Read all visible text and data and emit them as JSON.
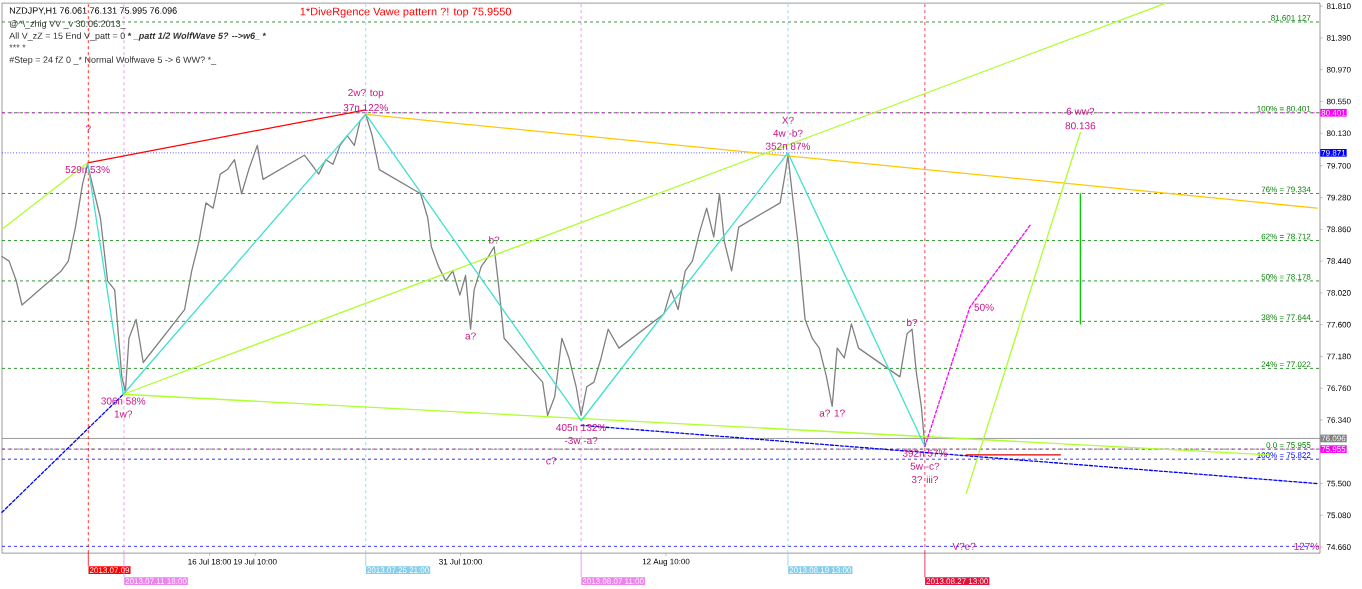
{
  "chart_data": {
    "type": "line",
    "title": "NZDJPY,H1  76.061 76.131 75.995 76.096",
    "subtitle": "1*DiveRgence  Vawe pattern ?! top  75.9550",
    "xlim": [
      "2013-07-04T15:00",
      "2013-09-19T15:00"
    ],
    "ylim": [
      74.58,
      81.85
    ],
    "xticks": [
      {
        "value": "2013-07-16T18:00",
        "label": "16 Jul 18:00"
      },
      {
        "value": "2013-07-19T10:00",
        "label": "19 Jul 10:00"
      },
      {
        "value": "2013-07-31T10:00",
        "label": "31 Jul 10:00"
      },
      {
        "value": "2013-08-12T10:00",
        "label": "12 Aug 10:00"
      }
    ],
    "yticks": [
      {
        "value": 74.66,
        "label": "74.660"
      },
      {
        "value": 75.08,
        "label": "75.080"
      },
      {
        "value": 75.5,
        "label": "75.500"
      },
      {
        "value": 76.34,
        "label": "76.340"
      },
      {
        "value": 76.76,
        "label": "76.760"
      },
      {
        "value": 77.18,
        "label": "77.180"
      },
      {
        "value": 77.6,
        "label": "77.600"
      },
      {
        "value": 78.02,
        "label": "78.020"
      },
      {
        "value": 78.44,
        "label": "78.440"
      },
      {
        "value": 78.86,
        "label": "78.860"
      },
      {
        "value": 79.28,
        "label": "79.280"
      },
      {
        "value": 79.7,
        "label": "79.700"
      },
      {
        "value": 80.13,
        "label": "80.130"
      },
      {
        "value": 80.55,
        "label": "80.550"
      },
      {
        "value": 80.97,
        "label": "80.970"
      },
      {
        "value": 81.39,
        "label": "81.390"
      },
      {
        "value": 81.81,
        "label": "81.810"
      }
    ],
    "series": [
      {
        "color": "#808080",
        "x": [
          "2013-07-04T15:00",
          "2013-07-05T01:00",
          "2013-07-05T11:00",
          "2013-07-05T19:00",
          "2013-07-08T02:00",
          "2013-07-08T12:00",
          "2013-07-08T22:00",
          "2013-07-09T08:00",
          "2013-07-09T15:00",
          "2013-07-09T23:00",
          "2013-07-10T09:00",
          "2013-07-10T19:00",
          "2013-07-11T05:00",
          "2013-07-11T15:00",
          "2013-07-11T20:00",
          "2013-07-12T01:00",
          "2013-07-12T11:00",
          "2013-07-12T21:00",
          "2013-07-15T07:00",
          "2013-07-15T17:00",
          "2013-07-16T03:00",
          "2013-07-16T13:00",
          "2013-07-16T23:00",
          "2013-07-17T09:00",
          "2013-07-17T19:00",
          "2013-07-18T05:00",
          "2013-07-18T15:00",
          "2013-07-19T01:00",
          "2013-07-19T13:00",
          "2013-07-19T21:00",
          "2013-07-22T07:00",
          "2013-07-22T17:00",
          "2013-07-23T03:00",
          "2013-07-23T13:00",
          "2013-07-23T23:00",
          "2013-07-24T09:00",
          "2013-07-24T19:00",
          "2013-07-25T05:00",
          "2013-07-25T13:00",
          "2013-07-25T21:00",
          "2013-07-26T06:00",
          "2013-07-26T16:00",
          "2013-07-29T02:00",
          "2013-07-29T12:00",
          "2013-07-29T17:00",
          "2013-07-30T03:00",
          "2013-07-30T13:00",
          "2013-07-30T23:00",
          "2013-07-31T09:00",
          "2013-07-31T17:00",
          "2013-08-01T00:00",
          "2013-08-01T05:00",
          "2013-08-01T15:00",
          "2013-08-02T01:00",
          "2013-08-02T09:00",
          "2013-08-02T16:00",
          "2013-08-02T23:00",
          "2013-08-05T05:00",
          "2013-08-05T12:00",
          "2013-08-05T22:00",
          "2013-08-06T08:00",
          "2013-08-06T18:00",
          "2013-08-07T04:00",
          "2013-08-07T11:00",
          "2013-08-07T19:00",
          "2013-08-08T05:00",
          "2013-08-08T15:00",
          "2013-08-09T01:00",
          "2013-08-09T16:00",
          "2013-08-12T07:00",
          "2013-08-12T17:00",
          "2013-08-13T03:00",
          "2013-08-13T13:00",
          "2013-08-13T23:00",
          "2013-08-14T09:00",
          "2013-08-14T19:00",
          "2013-08-15T05:00",
          "2013-08-15T13:00",
          "2013-08-15T20:00",
          "2013-08-16T06:00",
          "2013-08-16T16:00",
          "2013-08-19T02:00",
          "2013-08-19T09:00",
          "2013-08-19T13:00",
          "2013-08-19T19:00",
          "2013-08-20T03:00",
          "2013-08-20T13:00",
          "2013-08-20T23:00",
          "2013-08-21T09:00",
          "2013-08-21T19:00",
          "2013-08-22T03:00",
          "2013-08-22T10:00",
          "2013-08-22T20:00",
          "2013-08-23T06:00",
          "2013-08-23T16:00",
          "2013-08-26T02:00",
          "2013-08-26T12:00",
          "2013-08-26T19:00",
          "2013-08-27T01:00",
          "2013-08-27T08:00",
          "2013-08-27T13:00"
        ],
        "values": [
          78.5,
          78.44,
          78.18,
          77.86,
          78.31,
          78.44,
          78.89,
          79.46,
          79.72,
          79.4,
          79.01,
          78.18,
          78.06,
          76.91,
          76.71,
          77.42,
          77.67,
          77.1,
          77.8,
          78.31,
          78.69,
          79.21,
          79.14,
          79.59,
          79.65,
          79.78,
          79.33,
          79.65,
          79.97,
          79.52,
          79.84,
          79.72,
          79.59,
          79.78,
          79.72,
          79.97,
          80.1,
          79.97,
          80.29,
          80.38,
          80.1,
          79.65,
          79.33,
          79.01,
          78.63,
          78.37,
          78.18,
          78.31,
          77.99,
          78.25,
          77.54,
          78.06,
          78.37,
          78.5,
          78.63,
          78.06,
          77.42,
          76.84,
          76.4,
          76.65,
          77.42,
          77.16,
          76.78,
          76.4,
          76.78,
          76.84,
          77.16,
          77.54,
          77.29,
          77.74,
          78.06,
          77.8,
          78.31,
          78.44,
          78.82,
          79.14,
          78.76,
          79.33,
          78.69,
          78.31,
          78.89,
          79.21,
          79.59,
          79.84,
          79.33,
          78.69,
          77.67,
          77.42,
          77.29,
          76.91,
          76.52,
          77.29,
          77.16,
          77.61,
          77.29,
          76.91,
          77.48,
          77.54,
          76.97,
          76.52,
          75.99
        ]
      },
      {
        "color": "#ff0000",
        "x": [
          "2013-07-09T15:00",
          "2013-07-25T21:00"
        ],
        "values": [
          79.74,
          80.44
        ]
      },
      {
        "color": "#ffc800",
        "x": [
          "2013-07-25T21:00",
          "2013-09-19T11:00"
        ],
        "values": [
          80.38,
          79.14
        ]
      },
      {
        "color": "#adff2f",
        "x": [
          "2013-07-11T17:00",
          "2013-09-10T15:00"
        ],
        "values": [
          76.68,
          81.85
        ]
      },
      {
        "color": "#adff2f",
        "x": [
          "2013-07-11T17:00",
          "2013-09-16T17:00"
        ],
        "values": [
          76.68,
          75.88
        ]
      },
      {
        "color": "#adff2f",
        "x": [
          "2013-07-04T15:00",
          "2013-07-09T15:00"
        ],
        "values": [
          78.86,
          79.74
        ]
      },
      {
        "color": "#adff2f",
        "x": [
          "2013-08-29T23:00",
          "2013-09-05T15:00"
        ],
        "values": [
          75.37,
          80.14
        ]
      },
      {
        "color": "#00cc00",
        "x": [
          "2013-09-05T15:00",
          "2013-09-05T15:00"
        ],
        "values": [
          79.33,
          77.61
        ]
      },
      {
        "color": "#40e0d0",
        "x": [
          "2013-07-09T15:00",
          "2013-07-11T17:00",
          "2013-07-25T21:00",
          "2013-08-07T11:00",
          "2013-08-19T13:00",
          "2013-08-27T13:00"
        ],
        "values": [
          79.74,
          76.68,
          80.38,
          76.33,
          79.87,
          75.99
        ]
      },
      {
        "color": "#ff00ff",
        "line_style": "dashed",
        "x": [
          "2013-08-27T13:00",
          "2013-08-30T04:00",
          "2013-09-02T17:00"
        ],
        "values": [
          75.99,
          77.83,
          78.92
        ]
      },
      {
        "color": "#e00000",
        "x": [
          "2013-08-29T23:00",
          "2013-09-04T11:00"
        ],
        "values": [
          75.88,
          75.88
        ]
      },
      {
        "color": "#0000ff",
        "line_style": "dashed",
        "x": [
          "2013-07-04T15:00",
          "2013-07-11T17:00"
        ],
        "values": [
          75.12,
          76.68
        ]
      },
      {
        "color": "#0000ff",
        "line_style": "dashed",
        "x": [
          "2013-08-07T11:00",
          "2013-09-19T11:00"
        ],
        "values": [
          76.27,
          75.5
        ]
      }
    ],
    "ref_lines": [
      {
        "axis": "y",
        "value": 81.601,
        "label": "81.601   127",
        "color": "#008000",
        "line_style": "dashed"
      },
      {
        "axis": "y",
        "value": 80.401,
        "label": "100% =  80.401",
        "color": "#008000",
        "line_style": "dashed"
      },
      {
        "axis": "y",
        "value": 79.334,
        "label": "76% =  79.334",
        "color": "#008000",
        "line_style": "dashed"
      },
      {
        "axis": "y",
        "value": 78.712,
        "label": "62% =  78.712",
        "color": "#008000",
        "line_style": "dashed"
      },
      {
        "axis": "y",
        "value": 78.178,
        "label": "50% =  78.178",
        "color": "#008000",
        "line_style": "dashed"
      },
      {
        "axis": "y",
        "value": 77.644,
        "label": "38% =  77.644",
        "color": "#008000",
        "line_style": "dashed"
      },
      {
        "axis": "y",
        "value": 77.022,
        "label": "24% = 77.022",
        "color": "#008000",
        "line_style": "dashed"
      },
      {
        "axis": "y",
        "value": 75.955,
        "label": "0.0 =  75.955",
        "color": "#008000",
        "line_style": "dashed"
      },
      {
        "axis": "y",
        "value": 75.822,
        "label": "100%  = 75.822",
        "color": "#0000ff",
        "line_style": "dashed"
      },
      {
        "axis": "y",
        "value": 74.67,
        "color": "#0000ff",
        "line_style": "dashed"
      },
      {
        "axis": "y",
        "value": 80.401,
        "label": "80.401",
        "color": "#ff00ff",
        "line_style": "dashdot"
      },
      {
        "axis": "y",
        "value": 79.871,
        "label": "79.871",
        "color": "#0000ff",
        "line_style": "dotted"
      },
      {
        "axis": "y",
        "value": 76.096,
        "label": "76.096",
        "color": "#808080",
        "line_style": "solid"
      },
      {
        "axis": "y",
        "value": 75.955,
        "label": "75.955",
        "color": "#ff00ff",
        "line_style": "dashdot"
      },
      {
        "axis": "x",
        "value": "2013-07-09T16:00",
        "label": "2013.07.09",
        "color": "#ff0000",
        "line_style": "dashed"
      },
      {
        "axis": "x",
        "value": "2013-07-11T18:00",
        "label": "2013.07.11 18:00",
        "color": "#ee82ee",
        "line_style": "dashed"
      },
      {
        "axis": "x",
        "value": "2013-07-25T21:00",
        "label": "2013.07.25 21:00",
        "color": "#87ceeb",
        "line_style": "dashed"
      },
      {
        "axis": "x",
        "value": "2013-08-07T11:00",
        "label": "2013.08.07 11:00",
        "color": "#ee82ee",
        "line_style": "dashed"
      },
      {
        "axis": "x",
        "value": "2013-08-19T13:00",
        "label": "2013.08.19 13:00",
        "color": "#87ceeb",
        "line_style": "dashed"
      },
      {
        "axis": "x",
        "value": "2013-08-27T13:00",
        "label": "2013.08.27 13:00",
        "color": "#dc143c",
        "line_style": "dashed"
      }
    ],
    "annotations": [
      "@^\\_zhig VV  _v 30.06.2013_",
      "All V_zZ = 15   End V_patt = 0   ***   *_patt 1/2 WolfWave 5? -->w6_*   ***",
      "***    *",
      "#Step = 24 fZ 0 _* Normal Wolfwave 5 -> 6 WW? *_",
      {
        "text": "?",
        "x": "2013-07-09T16:00",
        "y": 80.19
      },
      {
        "text": "529п   53%",
        "x": "2013-07-09T15:00",
        "y": 79.74
      },
      {
        "text": "37п   122%",
        "x": "2013-07-25T21:00",
        "y": 80.38
      },
      {
        "text": "2w? top",
        "x": "2013-07-25T21:00",
        "y": 80.38
      },
      {
        "text": "306п   58%",
        "x": "2013-07-11T17:00",
        "y": 76.68
      },
      {
        "text": "1w?",
        "x": "2013-07-11T17:00",
        "y": 76.68
      },
      {
        "text": "b?",
        "x": "2013-08-02T09:00",
        "y": 78.63
      },
      {
        "text": "a?",
        "x": "2013-08-01T00:00",
        "y": 77.54
      },
      {
        "text": "405п   132%",
        "x": "2013-08-07T11:00",
        "y": 76.33
      },
      {
        "text": "-3w -a?",
        "x": "2013-08-07T11:00",
        "y": 76.33
      },
      {
        "text": "c?",
        "x": "2013-08-05T17:00",
        "y": 75.8
      },
      {
        "text": "352п   87%",
        "x": "2013-08-19T13:00",
        "y": 79.87
      },
      {
        "text": "4w -b?",
        "x": "2013-08-19T13:00",
        "y": 79.87
      },
      {
        "text": "X?",
        "x": "2013-08-19T13:00",
        "y": 79.87
      },
      {
        "text": "b?",
        "x": "2013-08-26T19:00",
        "y": 77.54
      },
      {
        "text": "a?   1?",
        "x": "2013-08-22T03:00",
        "y": 76.52
      },
      {
        "text": "392п   57%",
        "x": "2013-08-27T13:00",
        "y": 75.99
      },
      {
        "text": "5w -c?",
        "x": "2013-08-27T13:00",
        "y": 75.99
      },
      {
        "text": "3?   iii?",
        "x": "2013-08-27T13:00",
        "y": 75.99
      },
      {
        "text": "V?e?",
        "x": "2013-08-29T20:00",
        "y": 74.67
      },
      {
        "text": "6 ww?",
        "x": "2013-09-05T15:00",
        "y": 80.42
      },
      {
        "text": "80.136",
        "x": "2013-09-05T15:00",
        "y": 80.14
      },
      {
        "text": "50%",
        "x": "2013-08-30T04:00",
        "y": 77.83
      },
      {
        "text": "127%",
        "x": "2013-09-18T20:00",
        "y": 74.67
      }
    ]
  }
}
